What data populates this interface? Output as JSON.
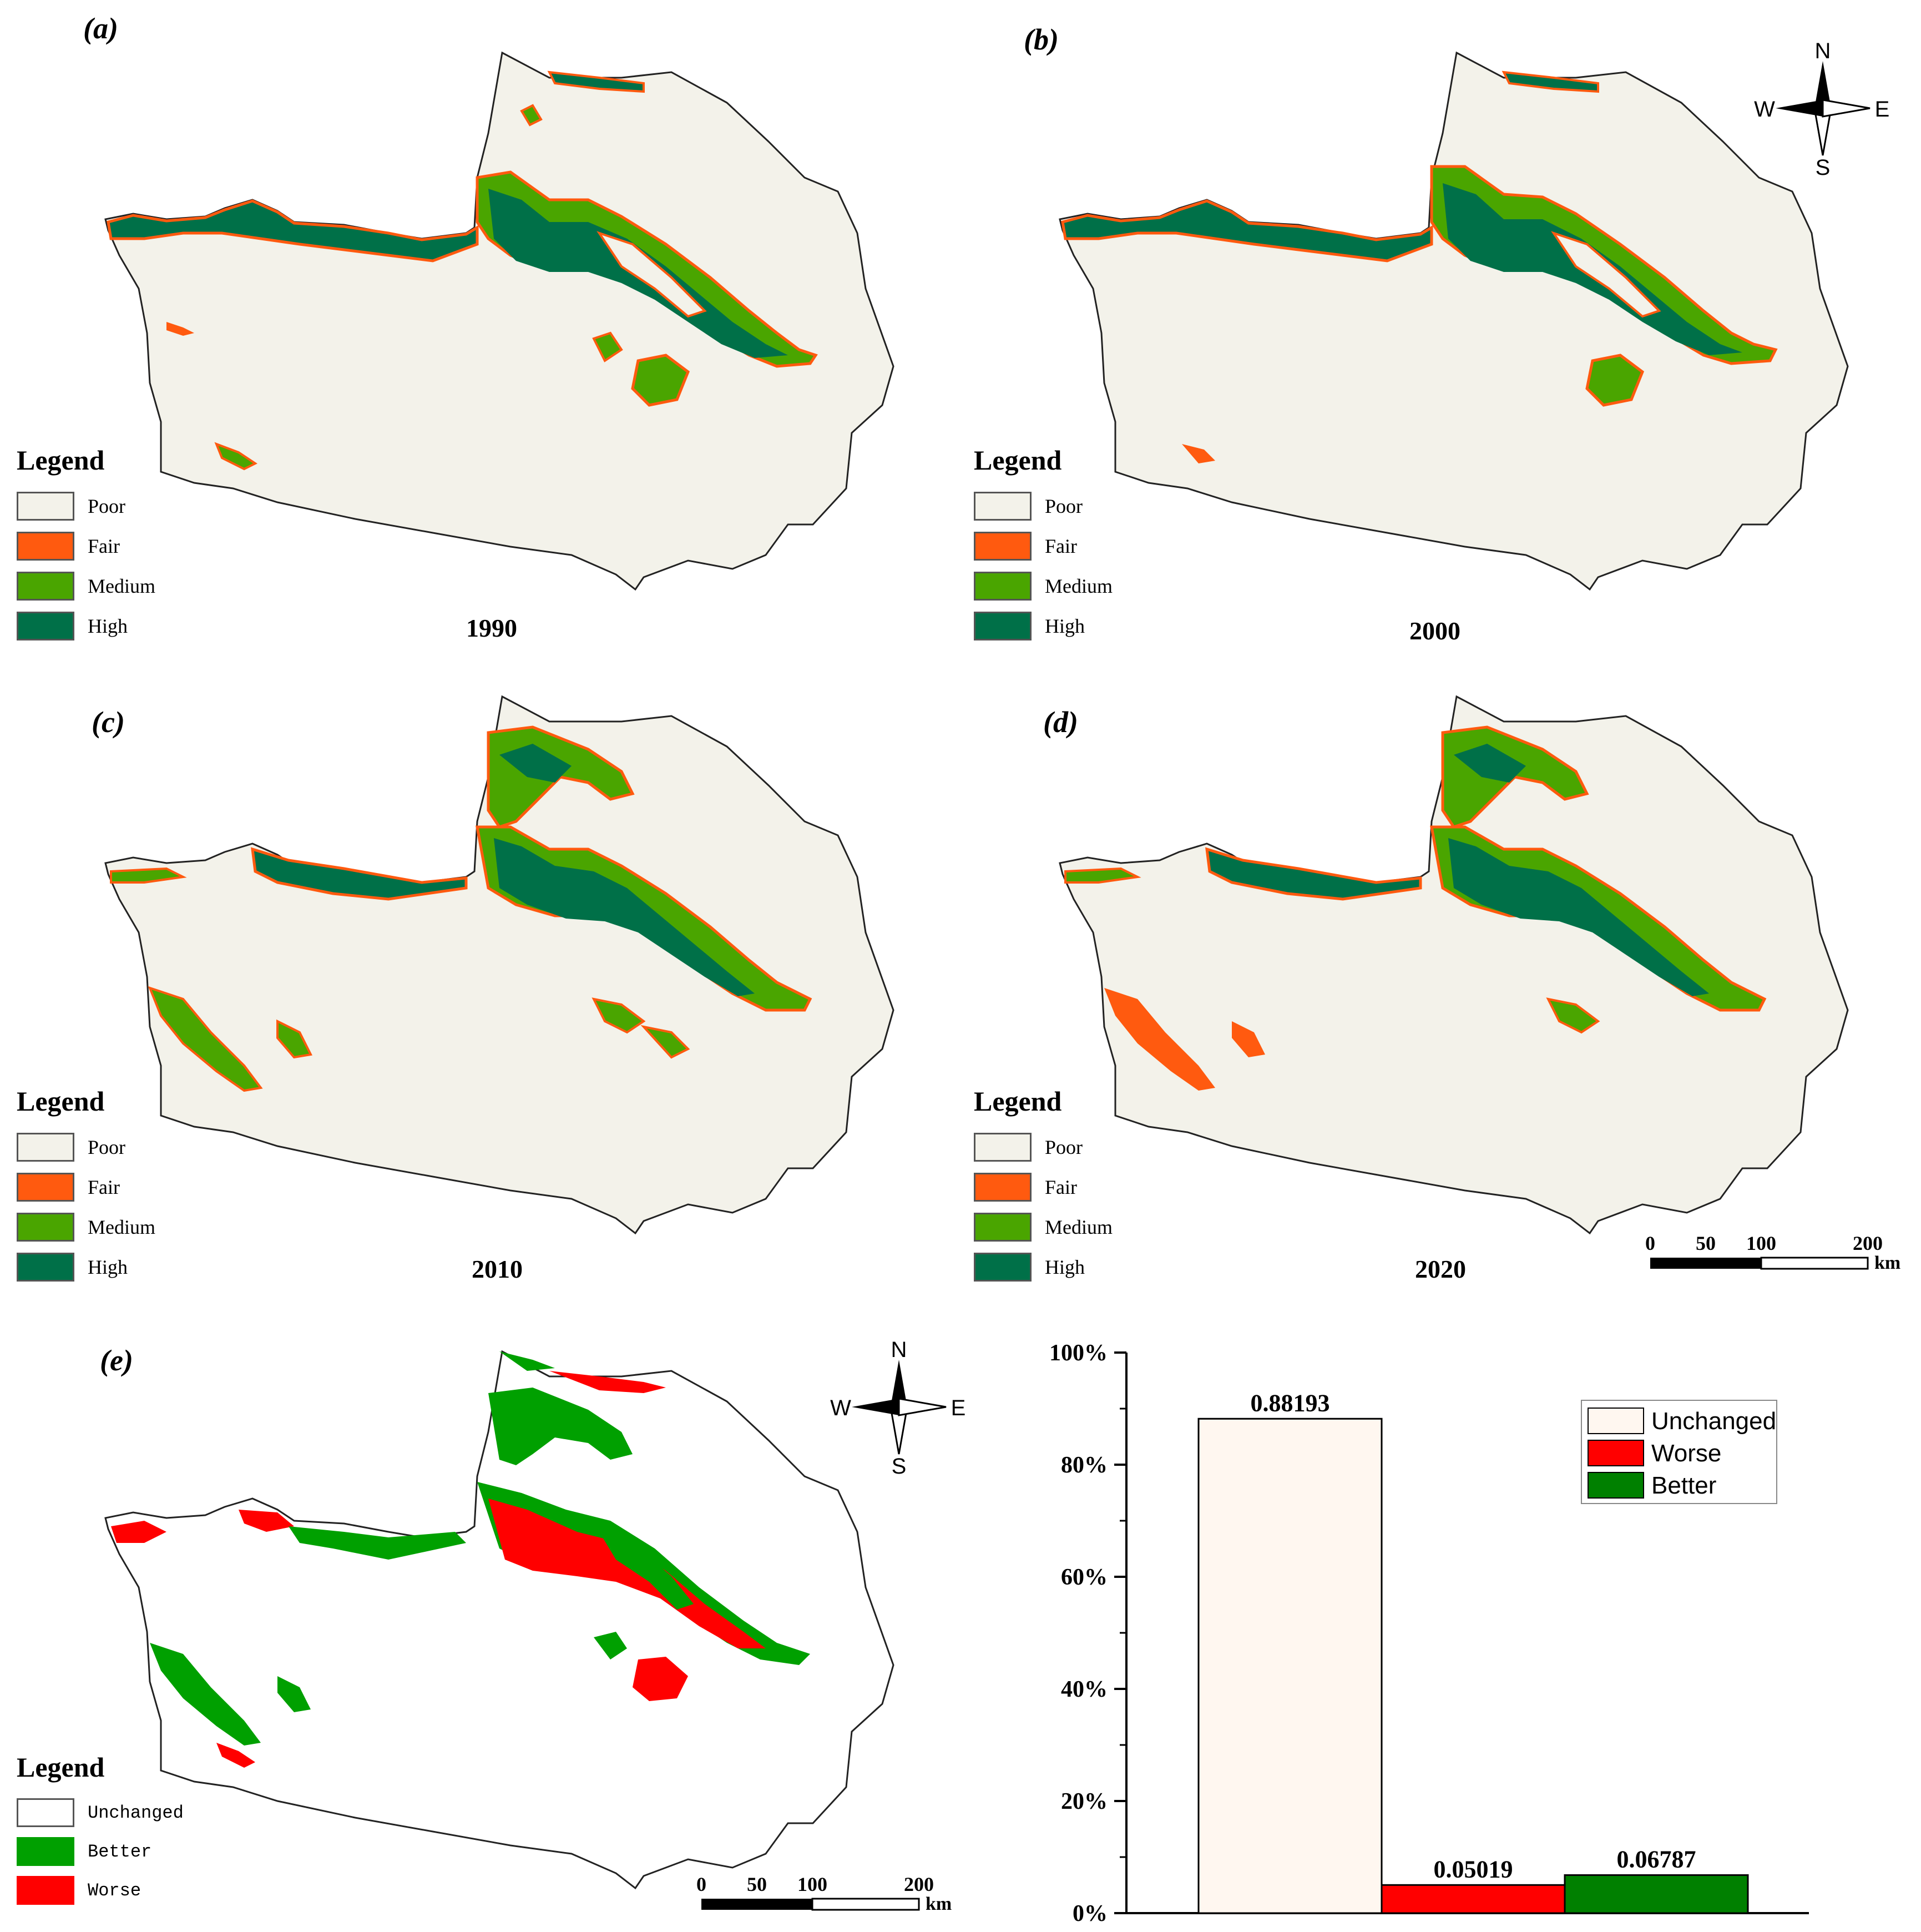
{
  "colors": {
    "poor": "#f3f2ea",
    "fair": "#ff5a0f",
    "medium": "#4aa500",
    "high": "#007048",
    "unchanged": "#ffffff",
    "better": "#00a000",
    "worse": "#ff0000",
    "bar_unchanged": "#fff7f0",
    "bar_worse": "#ff0000",
    "bar_better": "#008000"
  },
  "panels": [
    {
      "label": "(a)",
      "year": "1990"
    },
    {
      "label": "(b)",
      "year": "2000"
    },
    {
      "label": "(c)",
      "year": "2010"
    },
    {
      "label": "(d)",
      "year": "2020"
    }
  ],
  "panel_e": {
    "label": "(e)"
  },
  "legend": {
    "title": "Legend",
    "items": [
      "Poor",
      "Fair",
      "Medium",
      "High"
    ]
  },
  "change_legend": {
    "title": "Legend",
    "items": [
      "Unchanged",
      "Better",
      "Worse"
    ]
  },
  "compass": {
    "n": "N",
    "s": "S",
    "e": "E",
    "w": "W"
  },
  "scalebar": {
    "ticks": [
      "0",
      "50",
      "100",
      "200"
    ],
    "unit": "km"
  },
  "chart_data": {
    "type": "bar",
    "categories": [
      "Unchanged",
      "Worse",
      "Better"
    ],
    "values": [
      0.88193,
      0.05019,
      0.06787
    ],
    "labels": [
      "0.88193",
      "0.05019",
      "0.06787"
    ],
    "yticks": [
      "0%",
      "20%",
      "40%",
      "60%",
      "80%",
      "100%"
    ],
    "ylim": [
      0,
      1
    ],
    "legend": [
      "Unchanged",
      "Worse",
      "Better"
    ],
    "legend_position": "top-right"
  }
}
